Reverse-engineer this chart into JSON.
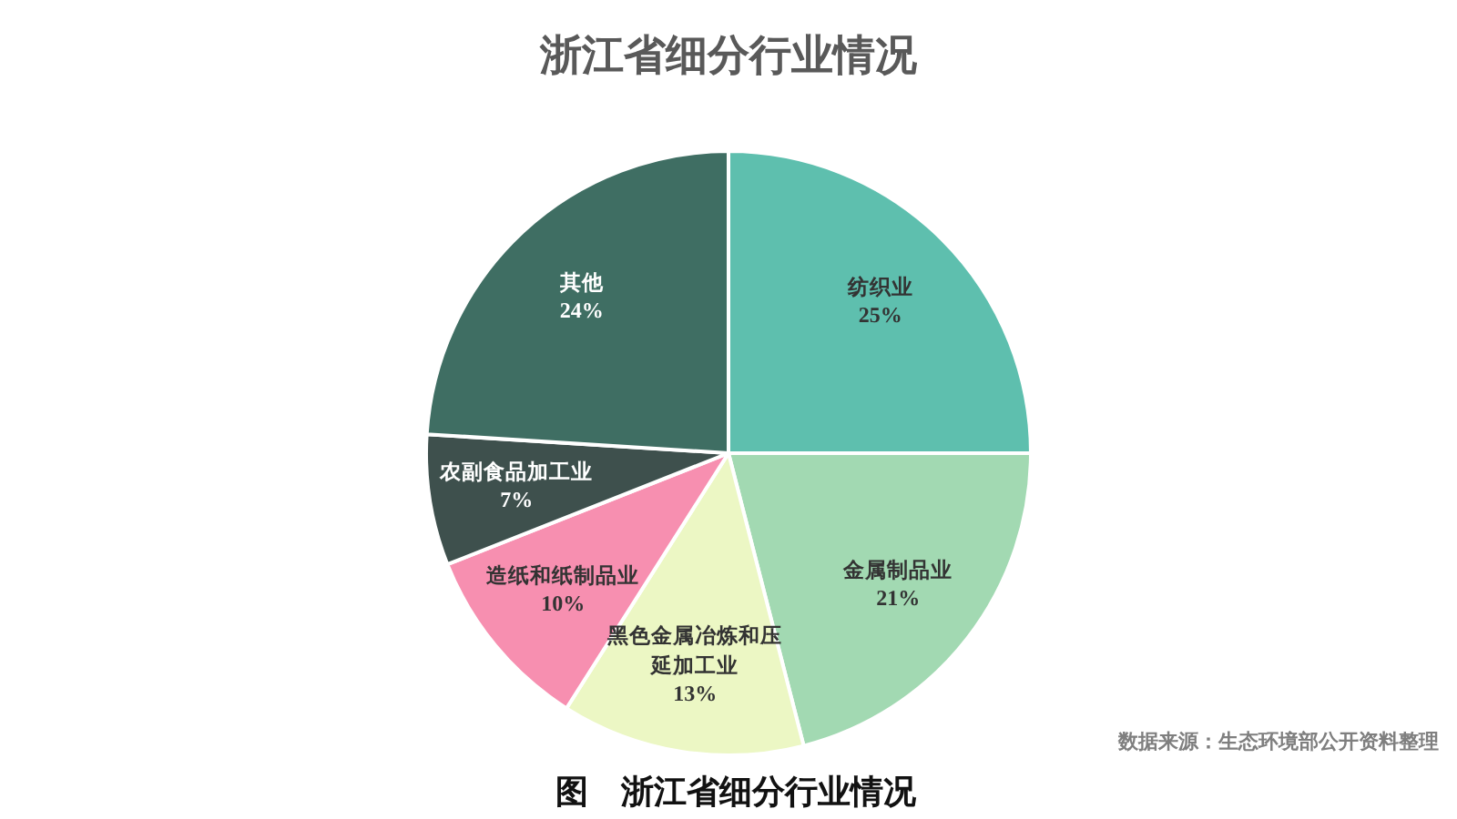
{
  "chart_data": {
    "type": "pie",
    "title": "浙江省细分行业情况",
    "categories": [
      "纺织业",
      "金属制品业",
      "黑色金属冶炼和压延加工业",
      "造纸和纸制品业",
      "农副食品加工业",
      "其他"
    ],
    "values": [
      25,
      21,
      13,
      10,
      7,
      24
    ],
    "value_labels": [
      "25%",
      "21%",
      "13%",
      "10%",
      "7%",
      "24%"
    ],
    "colors": [
      "#5ebfae",
      "#a2d9b2",
      "#ecf7c4",
      "#f78fb0",
      "#3e504d",
      "#3f6e63"
    ],
    "annotations": [
      "数据来源：生态环境部公开资料整理",
      "图　浙江省细分行业情况"
    ]
  }
}
